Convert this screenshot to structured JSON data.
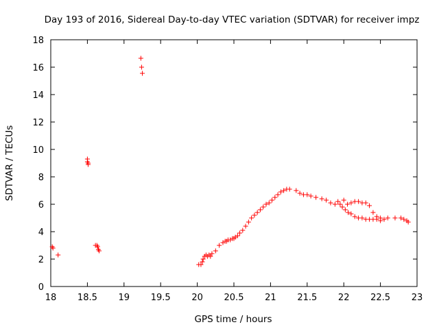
{
  "chart_data": {
    "type": "scatter",
    "title": "Day 193 of 2016, Sidereal Day-to-day VTEC variation (SDTVAR) for receiver impz",
    "xlabel": "GPS time / hours",
    "ylabel": "SDTVAR / TECUs",
    "xlim": [
      18,
      23
    ],
    "ylim": [
      0,
      18
    ],
    "xticks": [
      18,
      18.5,
      19,
      19.5,
      20,
      20.5,
      21,
      21.5,
      22,
      22.5,
      23
    ],
    "xtick_labels": [
      "18",
      "18.5",
      "19",
      "19.5",
      "20",
      "20.5",
      "21",
      "21.5",
      "22",
      "22.5",
      "23"
    ],
    "yticks": [
      0,
      2,
      4,
      6,
      8,
      10,
      12,
      14,
      16,
      18
    ],
    "ytick_labels": [
      "0",
      "2",
      "4",
      "6",
      "8",
      "10",
      "12",
      "14",
      "16",
      "18"
    ],
    "grid": false,
    "marker": "+",
    "color": "#ff0000",
    "series": [
      {
        "name": "SDTVAR",
        "x": [
          18.02,
          18.03,
          18.1,
          18.5,
          18.5,
          18.51,
          18.51,
          18.61,
          18.63,
          18.64,
          18.65,
          18.66,
          19.23,
          19.24,
          19.25,
          20.02,
          20.05,
          20.07,
          20.08,
          20.1,
          20.12,
          20.14,
          20.16,
          20.18,
          20.2,
          20.25,
          20.3,
          20.35,
          20.38,
          20.4,
          20.42,
          20.45,
          20.48,
          20.5,
          20.52,
          20.55,
          20.58,
          20.62,
          20.66,
          20.7,
          20.74,
          20.78,
          20.82,
          20.86,
          20.9,
          20.94,
          20.98,
          21.02,
          21.06,
          21.1,
          21.14,
          21.18,
          21.22,
          21.26,
          21.35,
          21.4,
          21.45,
          21.5,
          21.55,
          21.62,
          21.7,
          21.76,
          21.82,
          21.88,
          21.92,
          21.95,
          21.98,
          22.02,
          22.06,
          22.1,
          22.15,
          22.2,
          22.25,
          22.3,
          22.35,
          22.4,
          22.45,
          22.5,
          22.55,
          22.6,
          22.7,
          22.78,
          22.82,
          22.86,
          22.88,
          22.0,
          22.05,
          22.1,
          22.15,
          22.2,
          22.25,
          22.3,
          22.35,
          22.4,
          22.45,
          22.5,
          22.55
        ],
        "y": [
          2.9,
          2.8,
          2.3,
          9.3,
          9.1,
          9.0,
          8.9,
          3.0,
          3.0,
          2.9,
          2.7,
          2.6,
          16.65,
          16.0,
          15.55,
          1.6,
          1.6,
          1.8,
          2.0,
          2.2,
          2.3,
          2.2,
          2.3,
          2.2,
          2.4,
          2.6,
          3.0,
          3.2,
          3.3,
          3.3,
          3.4,
          3.4,
          3.5,
          3.5,
          3.6,
          3.7,
          3.9,
          4.1,
          4.4,
          4.7,
          5.0,
          5.2,
          5.4,
          5.6,
          5.8,
          6.0,
          6.1,
          6.3,
          6.5,
          6.7,
          6.9,
          7.0,
          7.1,
          7.1,
          7.0,
          6.8,
          6.7,
          6.7,
          6.6,
          6.5,
          6.4,
          6.3,
          6.1,
          6.0,
          6.2,
          6.0,
          5.8,
          5.6,
          5.4,
          5.3,
          5.1,
          5.0,
          5.0,
          4.9,
          4.9,
          4.9,
          4.9,
          4.8,
          4.9,
          5.0,
          5.0,
          5.0,
          4.9,
          4.8,
          4.7,
          6.3,
          6.0,
          6.1,
          6.2,
          6.2,
          6.1,
          6.1,
          5.9,
          5.4,
          5.1,
          5.0,
          4.9
        ]
      }
    ]
  }
}
